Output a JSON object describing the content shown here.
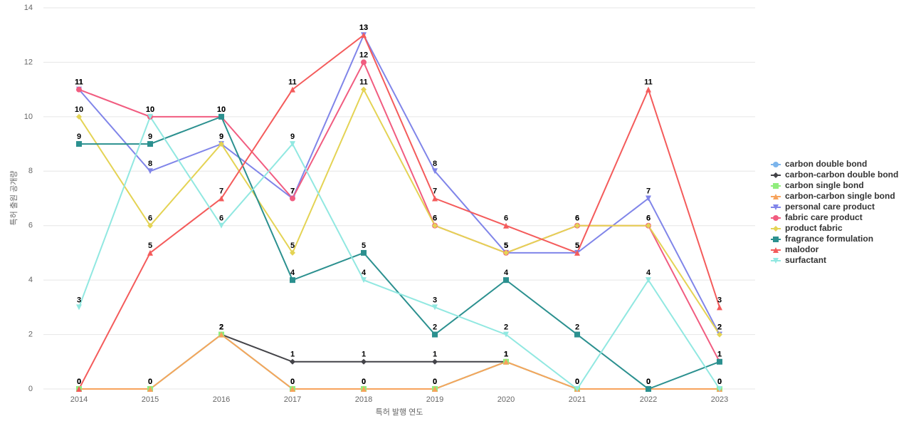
{
  "chart_data": {
    "type": "line",
    "x_label": "특허 발행 연도",
    "y_label": "특허 출원 공개량",
    "categories": [
      "2014",
      "2015",
      "2016",
      "2017",
      "2018",
      "2019",
      "2020",
      "2021",
      "2022",
      "2023"
    ],
    "ylim": [
      0,
      14
    ],
    "yticks": [
      0,
      2,
      4,
      6,
      8,
      10,
      12,
      14
    ],
    "grid": true,
    "legend": "right",
    "series": [
      {
        "name": "carbon double bond",
        "color": "#7cb5ec",
        "symbol": "circle",
        "values": [
          0,
          0,
          2,
          0,
          0,
          0,
          1,
          0,
          0,
          0
        ]
      },
      {
        "name": "carbon-carbon double bond",
        "color": "#434348",
        "symbol": "diamond",
        "values": [
          null,
          null,
          2,
          1,
          1,
          1,
          1,
          null,
          null,
          null
        ]
      },
      {
        "name": "carbon single bond",
        "color": "#90ed7d",
        "symbol": "square",
        "values": [
          0,
          0,
          2,
          0,
          0,
          0,
          1,
          0,
          0,
          0
        ]
      },
      {
        "name": "carbon-carbon single bond",
        "color": "#f7a35c",
        "symbol": "triangle",
        "values": [
          0,
          0,
          2,
          0,
          0,
          0,
          1,
          0,
          0,
          0
        ]
      },
      {
        "name": "personal care product",
        "color": "#8085e9",
        "symbol": "triangle-down",
        "values": [
          11,
          8,
          9,
          7,
          13,
          8,
          5,
          5,
          7,
          2
        ]
      },
      {
        "name": "fabric care product",
        "color": "#f15c80",
        "symbol": "circle",
        "values": [
          11,
          10,
          10,
          7,
          12,
          6,
          5,
          6,
          6,
          1
        ]
      },
      {
        "name": "product fabric",
        "color": "#e4d354",
        "symbol": "diamond",
        "values": [
          10,
          6,
          9,
          5,
          11,
          6,
          5,
          6,
          6,
          2
        ]
      },
      {
        "name": "fragrance formulation",
        "color": "#2b908f",
        "symbol": "square",
        "values": [
          9,
          9,
          10,
          4,
          5,
          2,
          4,
          2,
          0,
          1
        ]
      },
      {
        "name": "malodor",
        "color": "#f45b5b",
        "symbol": "triangle",
        "values": [
          0,
          5,
          7,
          11,
          13,
          7,
          6,
          5,
          11,
          3
        ]
      },
      {
        "name": "surfactant",
        "color": "#91e8e1",
        "symbol": "triangle-down",
        "values": [
          3,
          10,
          6,
          9,
          4,
          3,
          2,
          0,
          4,
          0
        ]
      }
    ]
  }
}
